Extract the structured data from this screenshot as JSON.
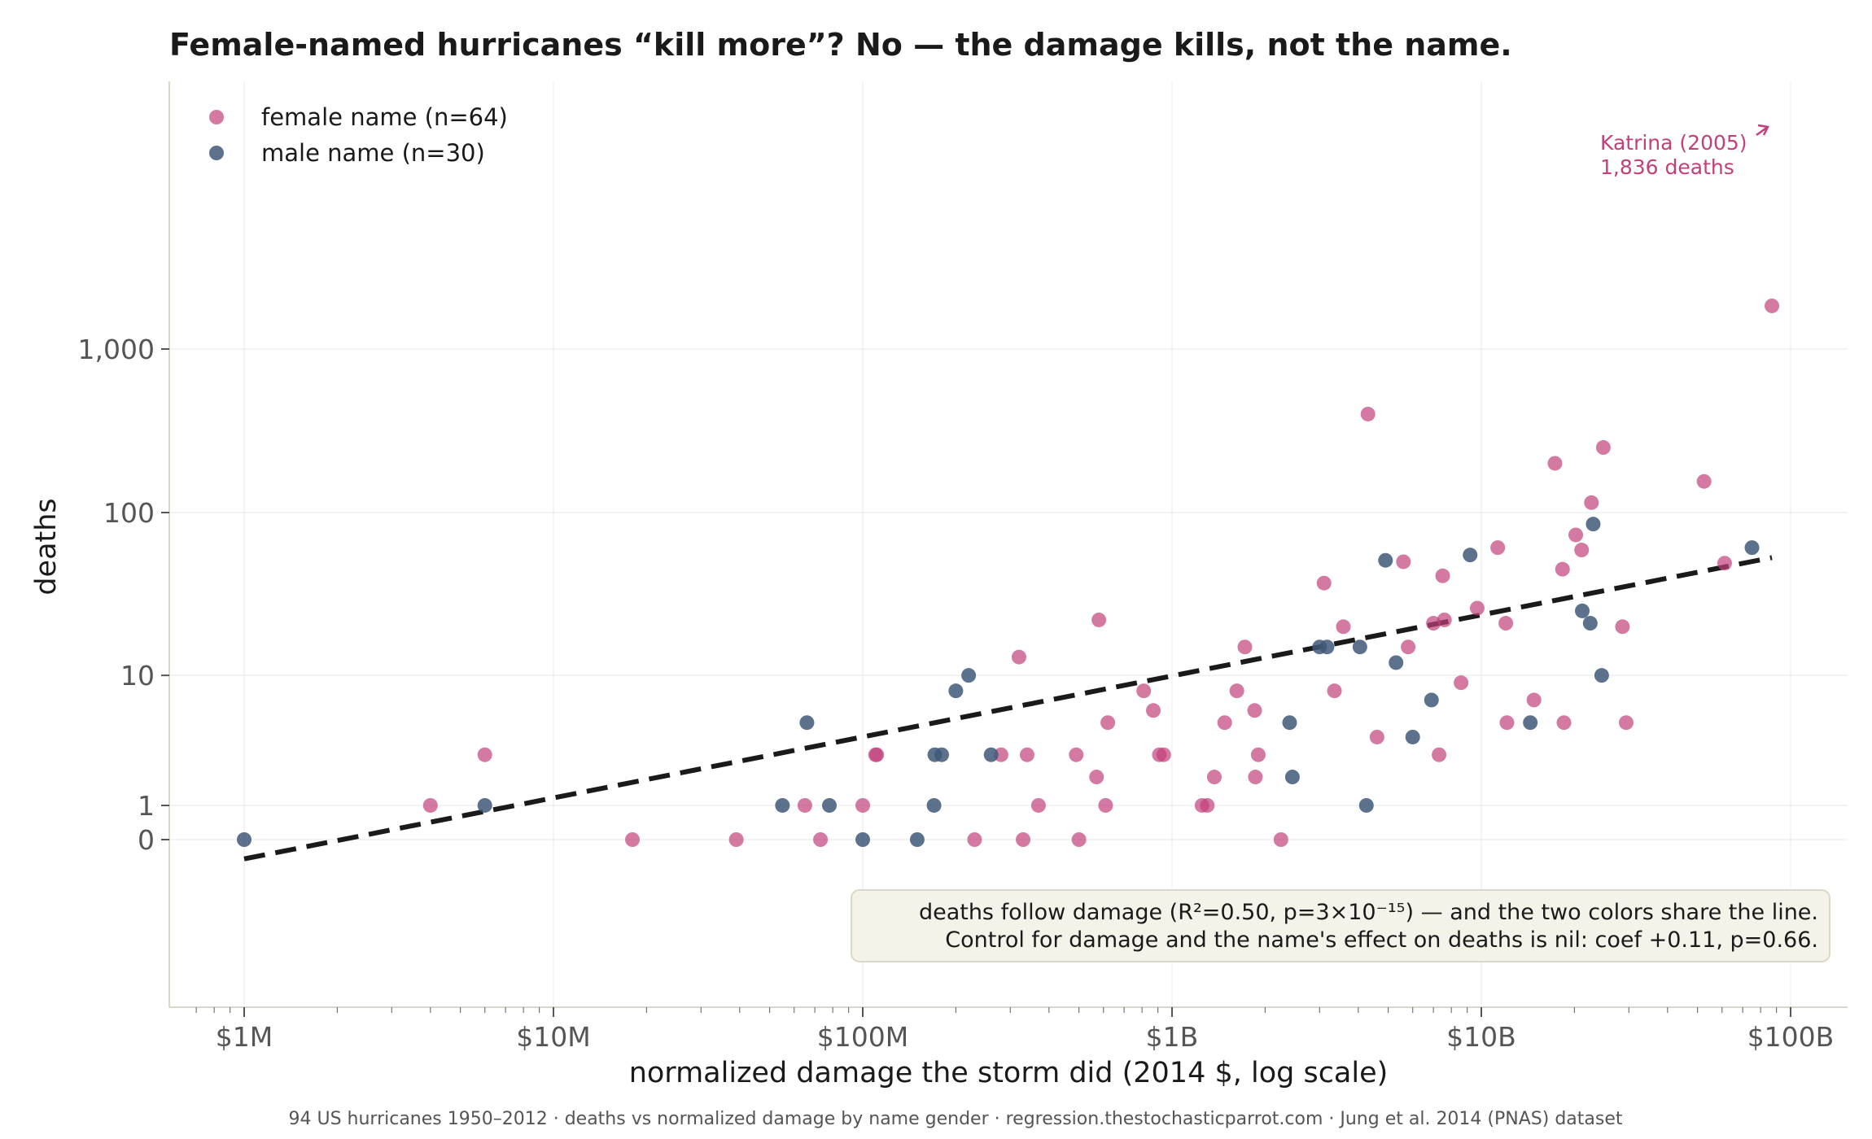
{
  "chart_data": {
    "type": "scatter",
    "title": "Female-named hurricanes “kill more”? No — the damage kills, not the name.",
    "xlabel": "normalized damage the storm did  (2014 $, log scale)",
    "ylabel": "deaths",
    "x_scale": "log",
    "y_scale": "symlog",
    "xlim": [
      650000,
      140000000000
    ],
    "ylim": [
      -0.6,
      3000
    ],
    "x_ticks": [
      {
        "value": 1000000,
        "label": "$1M"
      },
      {
        "value": 10000000,
        "label": "$10M"
      },
      {
        "value": 100000000,
        "label": "$100M"
      },
      {
        "value": 1000000000,
        "label": "$1B"
      },
      {
        "value": 10000000000,
        "label": "$10B"
      },
      {
        "value": 100000000000,
        "label": "$100B"
      }
    ],
    "y_ticks": [
      {
        "value": 0,
        "label": "0"
      },
      {
        "value": 1,
        "label": "1"
      },
      {
        "value": 10,
        "label": "10"
      },
      {
        "value": 100,
        "label": "100"
      },
      {
        "value": 1000,
        "label": "1,000"
      }
    ],
    "grid": true,
    "legend_position": "top-left",
    "series": [
      {
        "name": "female name (n=64)",
        "color": "#c2407a",
        "points": [
          [
            4000000,
            1
          ],
          [
            6000000,
            3
          ],
          [
            18000000,
            0
          ],
          [
            39000000,
            0
          ],
          [
            65000000,
            1
          ],
          [
            73000000,
            0
          ],
          [
            100000000,
            1
          ],
          [
            110000000,
            3
          ],
          [
            111000000,
            3
          ],
          [
            230000000,
            0
          ],
          [
            280000000,
            3
          ],
          [
            320000000,
            13
          ],
          [
            330000000,
            0
          ],
          [
            340000000,
            3
          ],
          [
            370000000,
            1
          ],
          [
            490000000,
            3
          ],
          [
            500000000,
            0
          ],
          [
            570000000,
            2
          ],
          [
            580000000,
            22
          ],
          [
            610000000,
            1
          ],
          [
            620000000,
            5
          ],
          [
            810000000,
            8
          ],
          [
            870000000,
            6
          ],
          [
            910000000,
            3
          ],
          [
            940000000,
            3
          ],
          [
            1250000000,
            1
          ],
          [
            1300000000,
            1
          ],
          [
            1370000000,
            2
          ],
          [
            1480000000,
            5
          ],
          [
            1620000000,
            8
          ],
          [
            1720000000,
            15
          ],
          [
            1850000000,
            6
          ],
          [
            1860000000,
            2
          ],
          [
            1900000000,
            3
          ],
          [
            2250000000,
            0
          ],
          [
            3100000000,
            37
          ],
          [
            3350000000,
            8
          ],
          [
            3580000000,
            20
          ],
          [
            4300000000,
            400
          ],
          [
            4600000000,
            4
          ],
          [
            5600000000,
            50
          ],
          [
            5800000000,
            15
          ],
          [
            7000000000,
            21
          ],
          [
            7300000000,
            3
          ],
          [
            7500000000,
            41
          ],
          [
            7600000000,
            22
          ],
          [
            8600000000,
            9
          ],
          [
            9700000000,
            26
          ],
          [
            11300000000,
            61
          ],
          [
            12000000000,
            21
          ],
          [
            12100000000,
            5
          ],
          [
            14800000000,
            7
          ],
          [
            17300000000,
            200
          ],
          [
            18300000000,
            45
          ],
          [
            18500000000,
            5
          ],
          [
            20200000000,
            73
          ],
          [
            21100000000,
            59
          ],
          [
            22700000000,
            115
          ],
          [
            24800000000,
            250
          ],
          [
            28600000000,
            20
          ],
          [
            29400000000,
            5
          ],
          [
            52500000000,
            155
          ],
          [
            61200000000,
            49
          ],
          [
            87000000000,
            1836
          ]
        ]
      },
      {
        "name": "male name (n=30)",
        "color": "#3f5878",
        "points": [
          [
            1000000,
            0
          ],
          [
            6000000,
            1
          ],
          [
            55000000,
            1
          ],
          [
            66000000,
            5
          ],
          [
            78000000,
            1
          ],
          [
            100000000,
            0
          ],
          [
            150000000,
            0
          ],
          [
            170000000,
            1
          ],
          [
            171000000,
            3
          ],
          [
            180000000,
            3
          ],
          [
            200000000,
            8
          ],
          [
            220000000,
            10
          ],
          [
            260000000,
            3
          ],
          [
            2400000000,
            5
          ],
          [
            2450000000,
            2
          ],
          [
            3000000000,
            15
          ],
          [
            3170000000,
            15
          ],
          [
            4050000000,
            15
          ],
          [
            4250000000,
            1
          ],
          [
            4900000000,
            51
          ],
          [
            5300000000,
            12
          ],
          [
            6000000000,
            4
          ],
          [
            6900000000,
            7
          ],
          [
            9200000000,
            55
          ],
          [
            14400000000,
            5
          ],
          [
            21200000000,
            25
          ],
          [
            22500000000,
            21
          ],
          [
            23000000000,
            85
          ],
          [
            24500000000,
            10
          ],
          [
            75000000000,
            61
          ]
        ]
      }
    ],
    "trend_line": {
      "style": "dashed",
      "color": "#1a1a1a",
      "from": [
        1000000,
        -0.55
      ],
      "to": [
        87000000000,
        53
      ]
    },
    "annotations": [
      {
        "lines": [
          "Katrina (2005)",
          "1,836 deaths"
        ],
        "target": [
          87000000000,
          1836
        ],
        "color": "#c2407a"
      }
    ],
    "note_box": {
      "lines": [
        "deaths follow damage (R²=0.50, p=3×10⁻¹⁵) — and the two colors share the line.",
        "Control for damage and the name's effect on deaths is nil: coef +0.11, p=0.66."
      ]
    },
    "footer": "94 US hurricanes 1950–2012 · deaths vs normalized damage by name gender · regression.thestochasticparrot.com · Jung et al. 2014 (PNAS) dataset"
  }
}
